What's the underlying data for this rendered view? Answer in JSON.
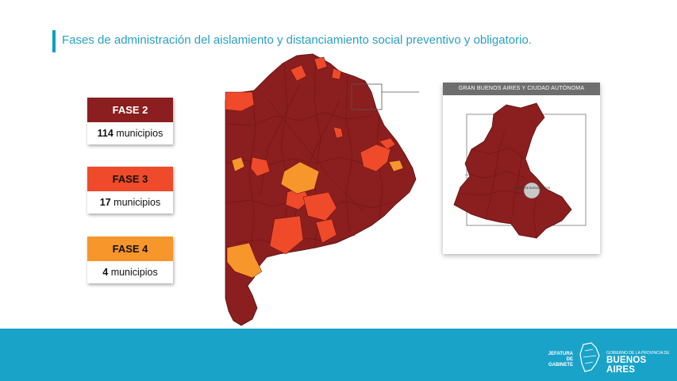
{
  "slide": {
    "title": "Fases de administración del aislamiento y distanciamiento social preventivo y obligatorio."
  },
  "legend": [
    {
      "phase": "FASE 2",
      "count": "114",
      "unit": "municipios",
      "color": "#8b1e1e",
      "text_color": "#ffffff"
    },
    {
      "phase": "FASE 3",
      "count": "17",
      "unit": "municipios",
      "color": "#ef4a2a",
      "text_color": "#111111"
    },
    {
      "phase": "FASE 4",
      "count": "4",
      "unit": "municipios",
      "color": "#f7962b",
      "text_color": "#111111"
    }
  ],
  "inset": {
    "title": "GRAN BUENOS AIRES Y CIUDAD AUTÓNOMA",
    "caba_label": "CIUDAD DE BUENOS AIRES"
  },
  "footer": {
    "jefatura": "JEFATURA DE GABINETE",
    "gobierno": "GOBIERNO DE LA PROVINCIA DE",
    "provincia": "BUENOS AIRES",
    "color": "#1aa3c9"
  },
  "colors": {
    "fase2": "#8b1e1e",
    "fase3": "#ef4a2a",
    "fase4": "#f7962b",
    "accent": "#00a1c7",
    "caba": "#c8c8c8"
  }
}
